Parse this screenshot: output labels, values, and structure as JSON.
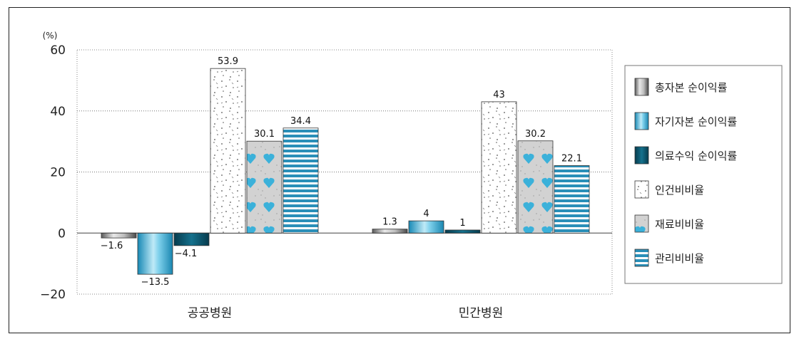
{
  "chart_data": {
    "type": "bar",
    "y_unit": "(%)",
    "categories": [
      "공공병원",
      "민간병원"
    ],
    "y_ticks": [
      "60",
      "40",
      "20",
      "0",
      "−20"
    ],
    "ylim": [
      -20,
      60
    ],
    "grid": true,
    "legend_position": "right",
    "series": [
      {
        "name": "총자본 순이익률",
        "values": [
          -1.6,
          1.3
        ],
        "labels": [
          "−1.6",
          "1.3"
        ],
        "color": "#9e9e9e",
        "pattern": "metal"
      },
      {
        "name": "자기자본 순이익률",
        "values": [
          -13.5,
          4
        ],
        "labels": [
          "−13.5",
          "4"
        ],
        "color": "#3bb1da",
        "pattern": "cyan"
      },
      {
        "name": "의료수익 순이익률",
        "values": [
          -4.1,
          1
        ],
        "labels": [
          "−4.1",
          "1"
        ],
        "color": "#0e5a72",
        "pattern": "dark"
      },
      {
        "name": "인건비비율",
        "values": [
          53.9,
          43
        ],
        "labels": [
          "53.9",
          "43"
        ],
        "color": "#ffffff",
        "pattern": "dots"
      },
      {
        "name": "재료비비율",
        "values": [
          30.1,
          30.2
        ],
        "labels": [
          "30.1",
          "30.2"
        ],
        "color": "#d7d7d7",
        "pattern": "hearts"
      },
      {
        "name": "관리비비율",
        "values": [
          34.4,
          22.1
        ],
        "labels": [
          "34.4",
          "22.1"
        ],
        "color": "#2a8fb8",
        "pattern": "stripes"
      }
    ]
  }
}
